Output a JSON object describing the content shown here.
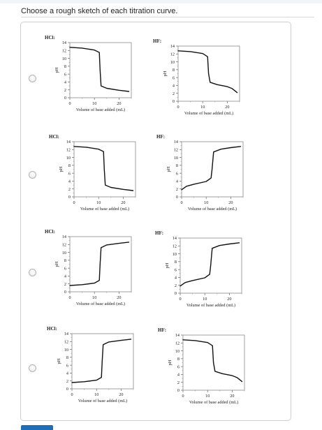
{
  "question": "Choose a rough sketch of each titration curve.",
  "options": [
    {
      "label": "option-a",
      "left": {
        "title": "HCl:",
        "curve": "descending-strong"
      },
      "right": {
        "title": "HF:",
        "curve": "descending-weak"
      }
    },
    {
      "label": "option-b",
      "left": {
        "title": "HCl:",
        "curve": "descending-strong"
      },
      "right": {
        "title": "HF:",
        "curve": "ascending-weak"
      }
    },
    {
      "label": "option-c",
      "left": {
        "title": "HCl:",
        "curve": "ascending-strong"
      },
      "right": {
        "title": "HF:",
        "curve": "ascending-weak"
      }
    },
    {
      "label": "option-d",
      "left": {
        "title": "HCl:",
        "curve": "ascending-strong"
      },
      "right": {
        "title": "HF:",
        "curve": "descending-weak"
      }
    }
  ],
  "axis": {
    "xlabel": "Volume of base added (mL)",
    "ylabel": "pH",
    "xticks": [
      "0",
      "10",
      "20"
    ],
    "yticks": [
      "0",
      "2",
      "4",
      "6",
      "8",
      "10",
      "12",
      "14"
    ]
  },
  "chart_data": [
    {
      "type": "line",
      "title": "HCl:",
      "xlabel": "Volume of base added (mL)",
      "ylabel": "pH",
      "xlim": [
        0,
        25
      ],
      "ylim": [
        0,
        14
      ],
      "series": [
        {
          "x": [
            0,
            5,
            10,
            12,
            12.3,
            12.7,
            15,
            20,
            24
          ],
          "values": [
            12.8,
            12.6,
            12.1,
            11.5,
            7,
            3.0,
            2.4,
            1.9,
            1.6
          ]
        }
      ]
    },
    {
      "type": "line",
      "title": "HF:",
      "xlabel": "Volume of base added (mL)",
      "ylabel": "pH",
      "xlim": [
        0,
        25
      ],
      "ylim": [
        0,
        14
      ],
      "series": [
        {
          "x": [
            0,
            5,
            10,
            12,
            12.4,
            13,
            16,
            20,
            22,
            24
          ],
          "values": [
            12.8,
            12.6,
            12.1,
            11.3,
            7,
            4.8,
            4.2,
            3.7,
            3.2,
            2.2
          ]
        }
      ]
    },
    {
      "type": "line",
      "title": "HCl:",
      "xlabel": "Volume of base added (mL)",
      "ylabel": "pH",
      "xlim": [
        0,
        25
      ],
      "ylim": [
        0,
        14
      ],
      "series": [
        {
          "x": [
            0,
            5,
            10,
            12,
            12.3,
            12.7,
            15,
            20,
            24
          ],
          "values": [
            12.8,
            12.6,
            12.1,
            11.5,
            7,
            3.0,
            2.4,
            1.9,
            1.6
          ]
        }
      ]
    },
    {
      "type": "line",
      "title": "HF:",
      "xlabel": "Volume of base added (mL)",
      "ylabel": "pH",
      "xlim": [
        0,
        25
      ],
      "ylim": [
        0,
        14
      ],
      "series": [
        {
          "x": [
            0,
            2,
            5,
            10,
            12,
            12.4,
            13,
            16,
            20,
            24
          ],
          "values": [
            1.8,
            2.7,
            3.2,
            3.9,
            4.8,
            7,
            11.4,
            12.1,
            12.5,
            12.8
          ]
        }
      ]
    },
    {
      "type": "line",
      "title": "HCl:",
      "xlabel": "Volume of base added (mL)",
      "ylabel": "pH",
      "xlim": [
        0,
        25
      ],
      "ylim": [
        0,
        14
      ],
      "series": [
        {
          "x": [
            0,
            5,
            10,
            12,
            12.3,
            12.7,
            15,
            20,
            24
          ],
          "values": [
            1.6,
            1.8,
            2.2,
            2.9,
            7,
            11.2,
            11.9,
            12.3,
            12.6
          ]
        }
      ]
    },
    {
      "type": "line",
      "title": "HF:",
      "xlabel": "Volume of base added (mL)",
      "ylabel": "pH",
      "xlim": [
        0,
        25
      ],
      "ylim": [
        0,
        14
      ],
      "series": [
        {
          "x": [
            0,
            2,
            5,
            10,
            12,
            12.4,
            13,
            16,
            20,
            24
          ],
          "values": [
            1.8,
            2.7,
            3.2,
            3.9,
            4.8,
            7,
            11.4,
            12.1,
            12.5,
            12.8
          ]
        }
      ]
    },
    {
      "type": "line",
      "title": "HCl:",
      "xlabel": "Volume of base added (mL)",
      "ylabel": "pH",
      "xlim": [
        0,
        25
      ],
      "ylim": [
        0,
        14
      ],
      "series": [
        {
          "x": [
            0,
            5,
            10,
            12,
            12.3,
            12.7,
            15,
            20,
            24
          ],
          "values": [
            1.6,
            1.8,
            2.2,
            2.9,
            7,
            11.2,
            11.9,
            12.3,
            12.6
          ]
        }
      ]
    },
    {
      "type": "line",
      "title": "HF:",
      "xlabel": "Volume of base added (mL)",
      "ylabel": "pH",
      "xlim": [
        0,
        25
      ],
      "ylim": [
        0,
        14
      ],
      "series": [
        {
          "x": [
            0,
            5,
            10,
            12,
            12.4,
            13,
            16,
            20,
            22,
            24
          ],
          "values": [
            12.8,
            12.6,
            12.1,
            11.3,
            7,
            4.8,
            4.2,
            3.7,
            3.2,
            2.2
          ]
        }
      ]
    }
  ]
}
